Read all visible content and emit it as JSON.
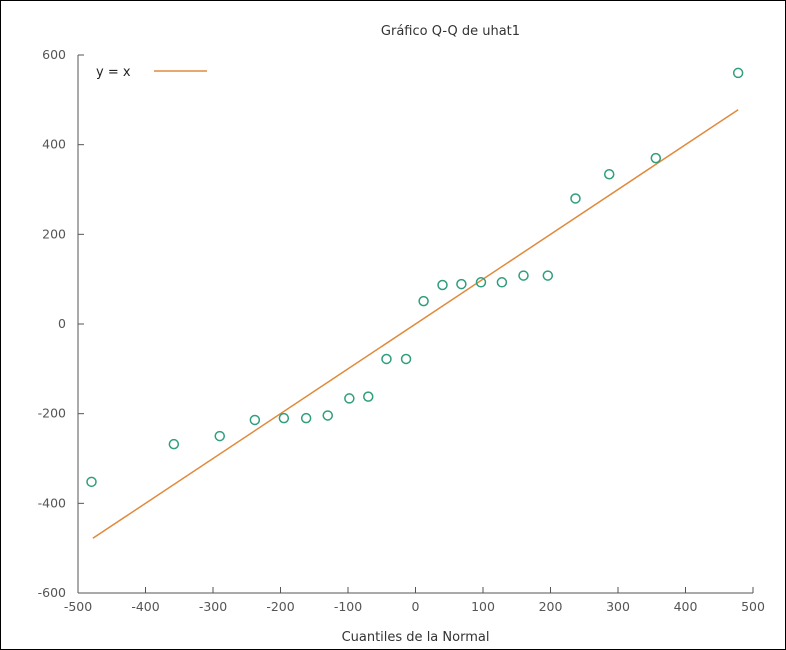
{
  "chart_data": {
    "type": "scatter",
    "title": "Gráfico Q-Q de uhat1",
    "xlabel": "Cuantiles de la Normal",
    "ylabel": "",
    "xlim": [
      -500,
      500
    ],
    "ylim": [
      -600,
      600
    ],
    "xticks": [
      -500,
      -400,
      -300,
      -200,
      -100,
      0,
      100,
      200,
      300,
      400,
      500
    ],
    "yticks": [
      -600,
      -400,
      -200,
      0,
      200,
      400,
      600
    ],
    "grid": false,
    "legend": {
      "placement": "top-left",
      "entries": [
        "y = x"
      ]
    },
    "colors": {
      "points": "#2e9e7c",
      "reference_line": "#e08a3c",
      "axis": "#555555"
    },
    "reference_line": {
      "name": "y = x",
      "from": -478,
      "to": 478
    },
    "series": [
      {
        "points": [
          {
            "x": -480,
            "y": -352
          },
          {
            "x": -358,
            "y": -268
          },
          {
            "x": -290,
            "y": -250
          },
          {
            "x": -238,
            "y": -214
          },
          {
            "x": -195,
            "y": -210
          },
          {
            "x": -162,
            "y": -210
          },
          {
            "x": -130,
            "y": -204
          },
          {
            "x": -98,
            "y": -166
          },
          {
            "x": -70,
            "y": -162
          },
          {
            "x": -43,
            "y": -78
          },
          {
            "x": -14,
            "y": -78
          },
          {
            "x": 12,
            "y": 51
          },
          {
            "x": 40,
            "y": 87
          },
          {
            "x": 68,
            "y": 89
          },
          {
            "x": 97,
            "y": 93
          },
          {
            "x": 128,
            "y": 93
          },
          {
            "x": 160,
            "y": 108
          },
          {
            "x": 196,
            "y": 108
          },
          {
            "x": 237,
            "y": 280
          },
          {
            "x": 287,
            "y": 334
          },
          {
            "x": 356,
            "y": 370
          },
          {
            "x": 478,
            "y": 560
          }
        ]
      }
    ]
  }
}
